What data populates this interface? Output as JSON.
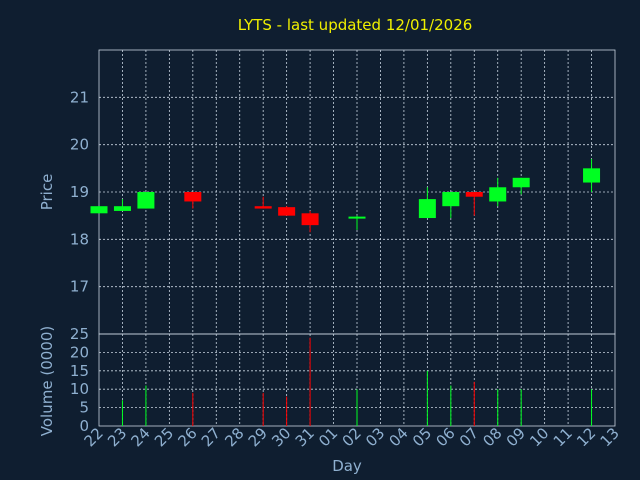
{
  "title": "LYTS - last updated 12/01/2026",
  "colors": {
    "background": "#0f1e30",
    "up": "#00ff22",
    "down": "#ff0000",
    "title": "#f0f000",
    "text": "#8fb0d0",
    "grid": "#c8d4e0"
  },
  "chart_data": [
    {
      "type": "candlestick",
      "ylabel": "Price",
      "ylim": [
        16,
        22
      ],
      "yticks": [
        17,
        18,
        19,
        20,
        21
      ],
      "grid": true,
      "dates": [
        "22",
        "23",
        "24",
        "25",
        "26",
        "27",
        "28",
        "29",
        "30",
        "31",
        "01",
        "02",
        "03",
        "04",
        "05",
        "06",
        "07",
        "08",
        "09",
        "10",
        "11",
        "12",
        "13"
      ],
      "candles": [
        {
          "date": "22",
          "open": 18.55,
          "close": 18.7,
          "high": 18.7,
          "low": 18.55,
          "dir": "up"
        },
        {
          "date": "23",
          "open": 18.6,
          "close": 18.7,
          "high": 18.85,
          "low": 18.6,
          "dir": "up"
        },
        {
          "date": "24",
          "open": 18.65,
          "close": 19.0,
          "high": 19.0,
          "low": 18.65,
          "dir": "up"
        },
        {
          "date": "26",
          "open": 19.0,
          "close": 18.8,
          "high": 19.0,
          "low": 18.65,
          "dir": "down"
        },
        {
          "date": "29",
          "open": 18.7,
          "close": 18.65,
          "high": 18.9,
          "low": 18.65,
          "dir": "down"
        },
        {
          "date": "30",
          "open": 18.68,
          "close": 18.5,
          "high": 18.7,
          "low": 18.5,
          "dir": "down"
        },
        {
          "date": "31",
          "open": 18.55,
          "close": 18.3,
          "high": 18.6,
          "low": 18.15,
          "dir": "down"
        },
        {
          "date": "02",
          "open": 18.45,
          "close": 18.48,
          "high": 18.5,
          "low": 18.2,
          "dir": "up"
        },
        {
          "date": "05",
          "open": 18.45,
          "close": 18.85,
          "high": 19.1,
          "low": 18.45,
          "dir": "up"
        },
        {
          "date": "06",
          "open": 18.7,
          "close": 19.0,
          "high": 19.0,
          "low": 18.45,
          "dir": "up"
        },
        {
          "date": "07",
          "open": 19.0,
          "close": 18.9,
          "high": 19.0,
          "low": 18.5,
          "dir": "down"
        },
        {
          "date": "08",
          "open": 18.8,
          "close": 19.1,
          "high": 19.3,
          "low": 18.7,
          "dir": "up"
        },
        {
          "date": "09",
          "open": 19.1,
          "close": 19.3,
          "high": 19.3,
          "low": 18.95,
          "dir": "up"
        },
        {
          "date": "12",
          "open": 19.2,
          "close": 19.5,
          "high": 19.7,
          "low": 19.0,
          "dir": "up"
        }
      ]
    },
    {
      "type": "bar",
      "ylabel": "Volume (0000)",
      "xlabel": "Day",
      "ylim": [
        0,
        25
      ],
      "yticks": [
        0,
        5,
        10,
        15,
        20,
        25
      ],
      "grid": true,
      "volumes": [
        {
          "date": "23",
          "value": 7,
          "dir": "up"
        },
        {
          "date": "24",
          "value": 11,
          "dir": "up"
        },
        {
          "date": "26",
          "value": 9,
          "dir": "down"
        },
        {
          "date": "29",
          "value": 9,
          "dir": "down"
        },
        {
          "date": "30",
          "value": 8,
          "dir": "down"
        },
        {
          "date": "31",
          "value": 24,
          "dir": "down"
        },
        {
          "date": "02",
          "value": 10,
          "dir": "up"
        },
        {
          "date": "05",
          "value": 15,
          "dir": "up"
        },
        {
          "date": "06",
          "value": 11,
          "dir": "up"
        },
        {
          "date": "07",
          "value": 12,
          "dir": "down"
        },
        {
          "date": "08",
          "value": 10,
          "dir": "up"
        },
        {
          "date": "09",
          "value": 10,
          "dir": "up"
        },
        {
          "date": "12",
          "value": 10,
          "dir": "up"
        }
      ]
    }
  ]
}
